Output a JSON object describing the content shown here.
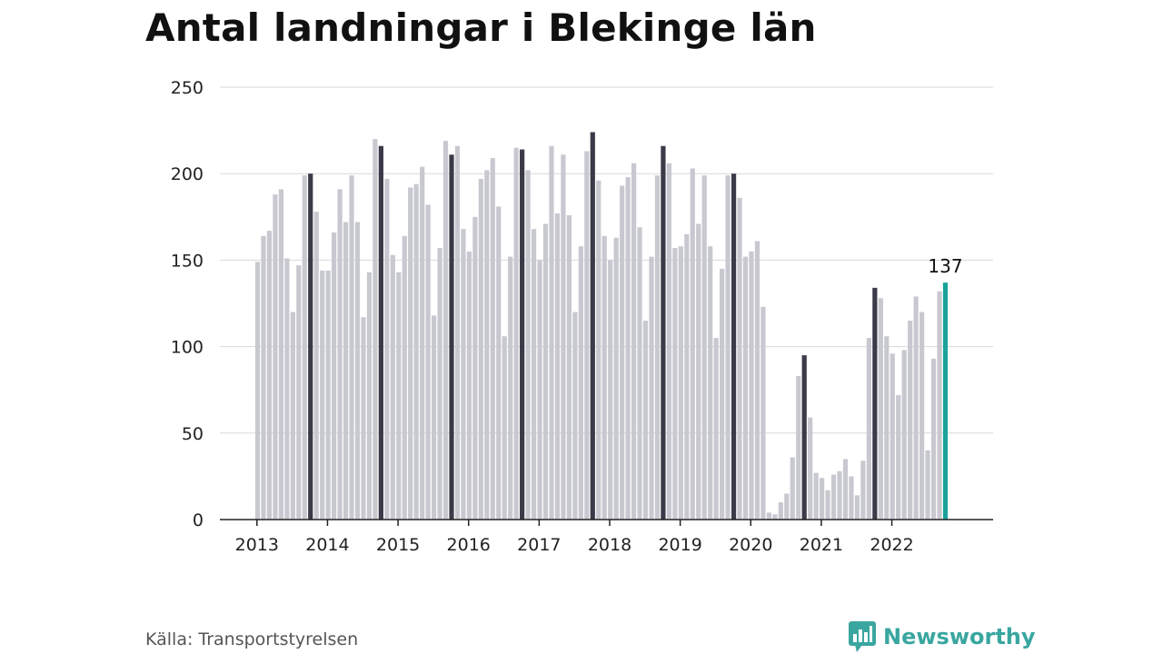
{
  "header": {
    "title": "Antal landningar i Blekinge län"
  },
  "footer": {
    "source": "Källa: Transportstyrelsen",
    "brand": "Newsworthy"
  },
  "colors": {
    "bar": "#c8c8d0",
    "highlight": "#3a3a48",
    "latest": "#1aa39a",
    "grid": "#d8d8d8",
    "brand": "#3aa6a0"
  },
  "chart_data": {
    "type": "bar",
    "title": "Antal landningar i Blekinge län",
    "xlabel": "",
    "ylabel": "",
    "ylim": [
      0,
      250
    ],
    "yticks": [
      0,
      50,
      100,
      150,
      200,
      250
    ],
    "year_labels": [
      "2013",
      "2014",
      "2015",
      "2016",
      "2017",
      "2018",
      "2019",
      "2020",
      "2021",
      "2022"
    ],
    "start": "2013-01",
    "end": "2022-10",
    "highlight_month": "October",
    "latest_label": "137",
    "values": [
      149,
      164,
      167,
      188,
      191,
      151,
      120,
      147,
      199,
      200,
      178,
      144,
      144,
      166,
      191,
      172,
      199,
      172,
      117,
      143,
      220,
      216,
      197,
      153,
      143,
      164,
      192,
      194,
      204,
      182,
      118,
      157,
      219,
      211,
      216,
      168,
      155,
      175,
      197,
      202,
      209,
      181,
      106,
      152,
      215,
      214,
      202,
      168,
      150,
      171,
      216,
      177,
      211,
      176,
      120,
      158,
      213,
      224,
      196,
      164,
      150,
      163,
      193,
      198,
      206,
      169,
      115,
      152,
      199,
      216,
      206,
      157,
      158,
      165,
      203,
      171,
      199,
      158,
      105,
      145,
      199,
      200,
      186,
      152,
      155,
      161,
      123,
      4,
      3,
      10,
      15,
      36,
      83,
      95,
      59,
      27,
      24,
      17,
      26,
      28,
      35,
      25,
      14,
      34,
      105,
      134,
      128,
      106,
      96,
      72,
      98,
      115,
      129,
      120,
      40,
      93,
      132,
      137
    ]
  }
}
